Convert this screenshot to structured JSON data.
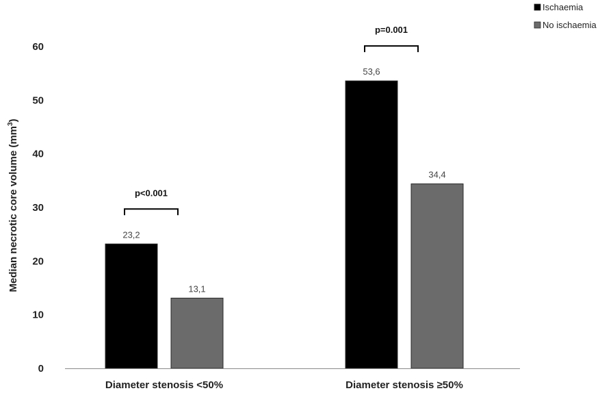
{
  "chart_data": {
    "type": "bar",
    "title": "",
    "xlabel": "",
    "ylabel": "Median necrotic core volume (mm",
    "ylabel_sup": "3",
    "ylabel_close": ")",
    "ylim": [
      0,
      60
    ],
    "yticks": [
      "0",
      "10",
      "20",
      "30",
      "40",
      "50",
      "60"
    ],
    "categories": [
      "Diameter stenosis <50%",
      "Diameter stenosis ≥50%"
    ],
    "series": [
      {
        "name": "Ischaemia",
        "color": "#000000",
        "values": [
          23.2,
          53.6
        ],
        "labels": [
          "23,2",
          "53,6"
        ]
      },
      {
        "name": "No ischaemia",
        "color": "#6b6b6b",
        "values": [
          13.1,
          34.4
        ],
        "labels": [
          "13,1",
          "34,4"
        ]
      }
    ],
    "annotations": [
      "p<0.001",
      "p=0.001"
    ],
    "legend_position": "top-right",
    "grid": false
  }
}
